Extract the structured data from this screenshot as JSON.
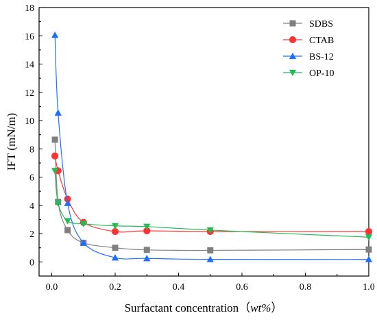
{
  "chart_data": {
    "type": "scatter",
    "title": "",
    "xlabel": {
      "prefix": "Surfactant concentration（",
      "unit": "wt%",
      "suffix": "）"
    },
    "ylabel": "IFT (mN/m)",
    "xlim": [
      -0.04,
      1.0
    ],
    "ylim": [
      -1,
      18
    ],
    "x_ticks": [
      "0.0",
      "0.2",
      "0.4",
      "0.6",
      "0.8",
      "1.0"
    ],
    "y_ticks": [
      "0",
      "2",
      "4",
      "6",
      "8",
      "10",
      "12",
      "14",
      "16",
      "18"
    ],
    "grid": false,
    "legend_position": "top-right",
    "x": [
      0.01,
      0.02,
      0.05,
      0.1,
      0.2,
      0.3,
      0.5,
      1.0
    ],
    "series": [
      {
        "name": "SDBS",
        "marker": "square",
        "color": "#808080",
        "values": [
          8.65,
          4.25,
          2.25,
          1.35,
          1.0,
          0.85,
          0.82,
          0.88
        ]
      },
      {
        "name": "CTAB",
        "marker": "circle",
        "color": "#ff3333",
        "values": [
          7.5,
          6.45,
          4.45,
          2.8,
          2.15,
          2.2,
          2.15,
          2.15
        ]
      },
      {
        "name": "BS-12",
        "marker": "triangle-up",
        "color": "#1e6fff",
        "values": [
          16.05,
          10.55,
          4.15,
          1.35,
          0.3,
          0.25,
          0.18,
          0.18
        ]
      },
      {
        "name": "OP-10",
        "marker": "triangle-down",
        "color": "#22bb55",
        "values": [
          6.45,
          4.15,
          2.9,
          2.7,
          2.55,
          2.5,
          2.25,
          1.75
        ]
      }
    ]
  }
}
